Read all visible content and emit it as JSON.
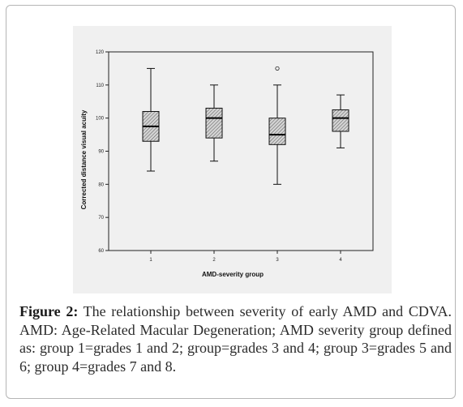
{
  "caption": {
    "label": "Figure 2:",
    "text": " The relationship between severity of early AMD and CDVA. AMD: Age-Related Macular Degeneration; AMD severity group defined as: group 1=grades 1 and 2; group=grades 3 and 4; group 3=grades 5 and 6; group 4=grades 7 and 8."
  },
  "chart_data": {
    "type": "boxplot",
    "xlabel": "AMD-severity group",
    "ylabel": "Corrected distance visual acuity",
    "ylim": [
      60,
      120
    ],
    "yticks": [
      60,
      70,
      80,
      90,
      100,
      110,
      120
    ],
    "categories": [
      "1",
      "2",
      "3",
      "4"
    ],
    "boxes": [
      {
        "group": "1",
        "min": 84,
        "q1": 93,
        "median": 97.5,
        "q3": 102,
        "max": 115,
        "outliers": []
      },
      {
        "group": "2",
        "min": 87,
        "q1": 94,
        "median": 100,
        "q3": 103,
        "max": 110,
        "outliers": []
      },
      {
        "group": "3",
        "min": 80,
        "q1": 92,
        "median": 95,
        "q3": 100,
        "max": 110,
        "outliers": [
          115
        ]
      },
      {
        "group": "4",
        "min": 91,
        "q1": 96,
        "median": 100,
        "q3": 102.5,
        "max": 107,
        "outliers": []
      }
    ],
    "box_fill": "hatched",
    "grid": false
  }
}
